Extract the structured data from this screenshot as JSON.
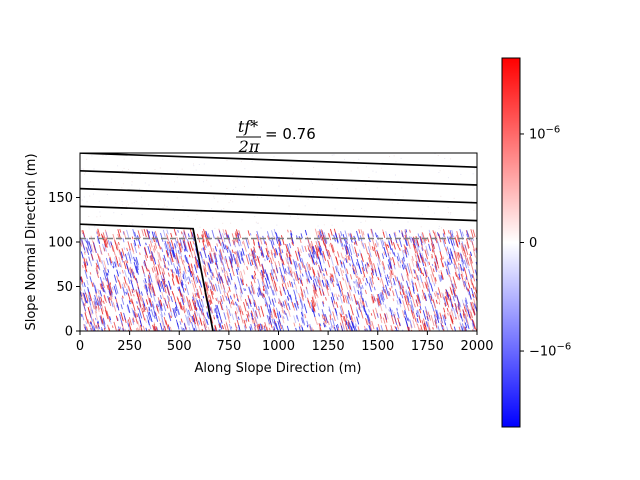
{
  "chart_data": {
    "type": "heatmap",
    "title": {
      "numerator": "tf*",
      "denominator": "2π",
      "equals": "= 0.76"
    },
    "xlabel": "Along Slope Direction (m)",
    "ylabel": "Slope Normal Direction (m)",
    "xlim": [
      0,
      2000
    ],
    "ylim": [
      0,
      200
    ],
    "xticks": [
      0,
      250,
      500,
      750,
      1000,
      1250,
      1500,
      1750,
      2000
    ],
    "yticks": [
      0,
      50,
      100,
      150
    ],
    "xtick_labels": [
      "0",
      "250",
      "500",
      "750",
      "1000",
      "1250",
      "1500",
      "1750",
      "2000"
    ],
    "ytick_labels": [
      "0",
      "50",
      "100",
      "150"
    ],
    "field": {
      "description_values": "random red/blue wavefield below y=115 m, near-zero above",
      "extent_y": [
        0,
        115
      ]
    },
    "layer_lines": [
      {
        "x": [
          0,
          2000
        ],
        "y": [
          200,
          184
        ]
      },
      {
        "x": [
          0,
          2000
        ],
        "y": [
          180,
          164
        ]
      },
      {
        "x": [
          0,
          2000
        ],
        "y": [
          160,
          144
        ]
      },
      {
        "x": [
          0,
          2000
        ],
        "y": [
          140,
          124
        ]
      },
      {
        "x": [
          0,
          570,
          670
        ],
        "y": [
          120,
          115,
          0
        ]
      }
    ],
    "dashed_line": {
      "y": 104,
      "color": "#7f7f7f"
    },
    "colorbar": {
      "cmap": "bwr",
      "vmin": -1.7e-06,
      "vmax": 1.7e-06,
      "ticks": [
        {
          "value": 1e-06,
          "base": "10",
          "exp": "−6",
          "sign": ""
        },
        {
          "value": 0,
          "label": "0"
        },
        {
          "value": -1e-06,
          "base": "10",
          "exp": "−6",
          "sign": "−"
        }
      ]
    },
    "grid": false,
    "legend": "none"
  }
}
